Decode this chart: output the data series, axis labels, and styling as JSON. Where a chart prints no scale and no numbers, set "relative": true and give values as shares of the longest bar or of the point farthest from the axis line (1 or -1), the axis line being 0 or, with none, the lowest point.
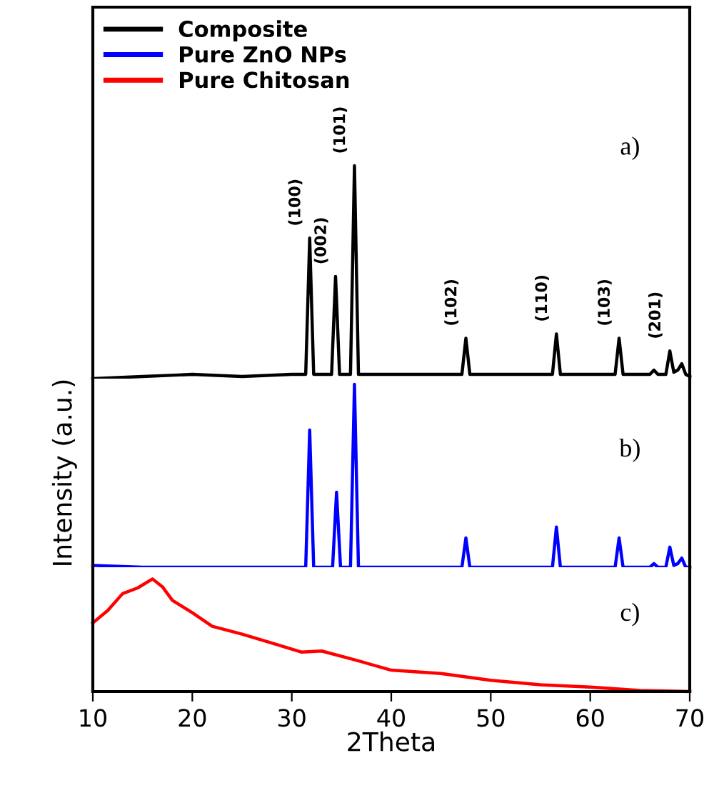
{
  "chart_data": [
    {
      "type": "line",
      "relative": true,
      "xlim": [
        10,
        70
      ],
      "xticks": [
        10,
        20,
        30,
        40,
        50,
        60,
        70
      ],
      "tick_labels": false,
      "legend": "top left",
      "annotations": [
        {
          "text": "(100)",
          "x": 31.8,
          "y": 0.66
        },
        {
          "text": "(002)",
          "x": 34.4,
          "y": 0.48
        },
        {
          "text": "(101)",
          "x": 36.3,
          "y": 1
        },
        {
          "text": "(102)",
          "x": 47.5,
          "y": 0.19
        },
        {
          "text": "(110)",
          "x": 56.6,
          "y": 0.21
        },
        {
          "text": "(103)",
          "x": 62.9,
          "y": 0.19
        },
        {
          "text": "(201)",
          "x": 68.0,
          "y": 0.13
        },
        "a)"
      ],
      "series": [
        {
          "name": "Composite",
          "color": "#000000",
          "x": [
            10,
            15,
            20,
            25,
            30,
            31.4,
            31.8,
            32.2,
            34.0,
            34.4,
            34.8,
            35.9,
            36.3,
            36.7,
            40,
            45,
            47.1,
            47.5,
            47.9,
            52,
            56.2,
            56.6,
            57.0,
            60,
            62.5,
            62.9,
            63.3,
            66.0,
            66.4,
            66.8,
            67.6,
            68.0,
            68.4,
            68.8,
            69.2,
            69.6,
            70
          ],
          "values": [
            0.0,
            0.01,
            0.02,
            0.01,
            0.02,
            0.02,
            0.66,
            0.02,
            0.02,
            0.48,
            0.02,
            0.02,
            1,
            0.02,
            0.02,
            0.02,
            0.02,
            0.19,
            0.02,
            0.02,
            0.02,
            0.21,
            0.02,
            0.02,
            0.02,
            0.19,
            0.02,
            0.02,
            0.04,
            0.02,
            0.02,
            0.13,
            0.03,
            0.04,
            0.07,
            0.02,
            0.01
          ]
        }
      ]
    },
    {
      "type": "line",
      "relative": true,
      "xlim": [
        10,
        70
      ],
      "xticks": [
        10,
        20,
        30,
        40,
        50,
        60,
        70
      ],
      "tick_labels": false,
      "ylabel": "Intensity (a.u.)",
      "annotations": [
        "b)"
      ],
      "series": [
        {
          "name": "Pure ZnO NPs",
          "color": "#0000ff",
          "x": [
            10,
            15,
            20,
            25,
            30,
            31.4,
            31.8,
            32.2,
            34.1,
            34.5,
            34.9,
            35.9,
            36.3,
            36.7,
            40,
            45,
            47.1,
            47.5,
            47.9,
            52,
            56.2,
            56.6,
            57.0,
            60,
            62.5,
            62.9,
            63.3,
            66.0,
            66.4,
            66.8,
            67.6,
            68.0,
            68.4,
            68.8,
            69.2,
            69.6,
            70
          ],
          "values": [
            0.01,
            0.0,
            0.0,
            0.0,
            0.0,
            0.0,
            0.75,
            0.0,
            0.0,
            0.41,
            0.0,
            0.0,
            1,
            0.0,
            0.0,
            0.0,
            0.0,
            0.16,
            0.0,
            0.0,
            0.0,
            0.22,
            0.0,
            0.0,
            0.0,
            0.16,
            0.0,
            0.0,
            0.02,
            0.0,
            0.0,
            0.11,
            0.01,
            0.02,
            0.05,
            0.0,
            0.0
          ]
        }
      ]
    },
    {
      "type": "line",
      "relative": true,
      "xlim": [
        10,
        70
      ],
      "xticks": [
        10,
        20,
        30,
        40,
        50,
        60,
        70
      ],
      "tick_labels": "x",
      "xlabel": "2Theta",
      "annotations": [
        "c)"
      ],
      "series": [
        {
          "name": "Pure Chitosan",
          "color": "#ff0000",
          "x": [
            10,
            11.5,
            13,
            14.5,
            16,
            17,
            18,
            20,
            22,
            25,
            28,
            31,
            33,
            36,
            40,
            45,
            50,
            55,
            60,
            65,
            70
          ],
          "values": [
            0.61,
            0.72,
            0.87,
            0.92,
            1.0,
            0.93,
            0.81,
            0.7,
            0.58,
            0.51,
            0.43,
            0.35,
            0.36,
            0.29,
            0.19,
            0.16,
            0.1,
            0.06,
            0.04,
            0.01,
            0.0
          ]
        }
      ]
    }
  ]
}
